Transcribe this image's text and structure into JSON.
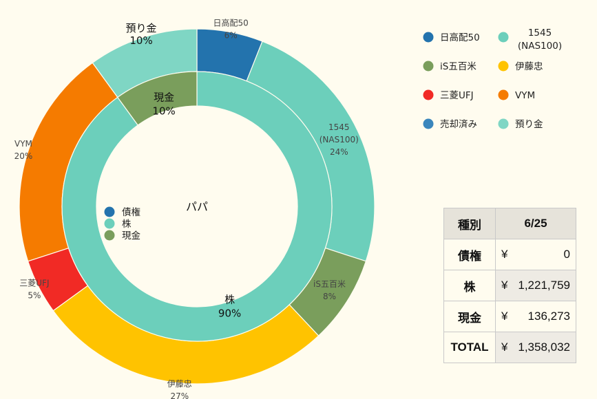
{
  "chart_data": {
    "type": "donut",
    "center_label": "パパ",
    "outer_ring": {
      "slices": [
        {
          "label": "日高配50",
          "value": 6,
          "pct_label": "6%",
          "color": "#2373ad"
        },
        {
          "label": "1545\n(NAS100)",
          "value": 24,
          "pct_label": "24%",
          "color": "#6ccfbb"
        },
        {
          "label": "iS五百米",
          "value": 8,
          "pct_label": "8%",
          "color": "#7a9e5c"
        },
        {
          "label": "伊藤忠",
          "value": 27,
          "pct_label": "27%",
          "color": "#ffc300"
        },
        {
          "label": "三菱UFJ",
          "value": 5,
          "pct_label": "5%",
          "color": "#f12a25"
        },
        {
          "label": "VYM",
          "value": 20,
          "pct_label": "20%",
          "color": "#f57b00"
        },
        {
          "label": "預り金",
          "value": 10,
          "pct_label": "10%",
          "color": "#7fd6c4"
        }
      ]
    },
    "inner_ring": {
      "slices": [
        {
          "label": "株",
          "value": 90,
          "pct_label": "90%",
          "color": "#6ccfbb"
        },
        {
          "label": "現金",
          "value": 10,
          "pct_label": "10%",
          "color": "#7a9e5c"
        }
      ],
      "legend": [
        {
          "label": "債権",
          "color": "#2373ad"
        },
        {
          "label": "株",
          "color": "#6ccfbb"
        },
        {
          "label": "現金",
          "color": "#7a9e5c"
        }
      ]
    },
    "legend": [
      {
        "label": "日高配50",
        "color": "#2373ad"
      },
      {
        "label": "1545\n(NAS100)",
        "color": "#6ccfbb"
      },
      {
        "label": "iS五百米",
        "color": "#7a9e5c"
      },
      {
        "label": "伊藤忠",
        "color": "#ffc300"
      },
      {
        "label": "三菱UFJ",
        "color": "#f12a25"
      },
      {
        "label": "VYM",
        "color": "#f57b00"
      },
      {
        "label": "売却済み",
        "color": "#3a86bc"
      },
      {
        "label": "預り金",
        "color": "#7fd6c4"
      }
    ]
  },
  "summary_table": {
    "header": {
      "col1": "種別",
      "col2": "6/25"
    },
    "rows": [
      {
        "key": "債権",
        "yen": "¥",
        "amount": "0"
      },
      {
        "key": "株",
        "yen": "¥",
        "amount": "1,221,759"
      },
      {
        "key": "現金",
        "yen": "¥",
        "amount": "136,273"
      },
      {
        "key": "TOTAL",
        "yen": "¥",
        "amount": "1,358,032"
      }
    ]
  }
}
